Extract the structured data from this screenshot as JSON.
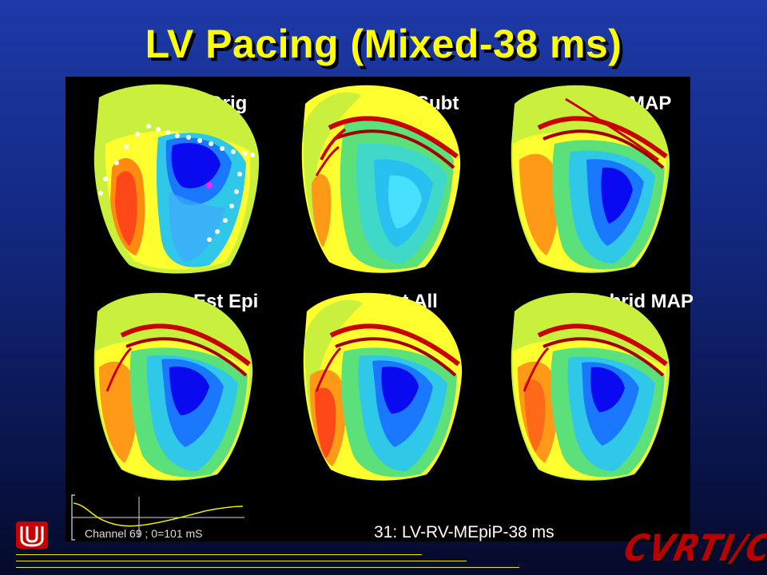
{
  "title": "LV Pacing (Mixed-38 ms)",
  "maps": [
    {
      "label": "Orig"
    },
    {
      "label": "Subt"
    },
    {
      "label": "MAP"
    },
    {
      "label": "Est Epi"
    },
    {
      "label": "Est All"
    },
    {
      "label": "Hybrid MAP"
    }
  ],
  "trace_label": "Channel 69 ; 0=101 mS",
  "caption": "31: LV-RV-MEpiP-38 ms",
  "logo_text": "CVRTI/CDSP",
  "colors": {
    "title": "#ffff00",
    "background": "#142a86",
    "panel": "#000000",
    "logo": "#b80000",
    "rules": "#e8e800"
  }
}
